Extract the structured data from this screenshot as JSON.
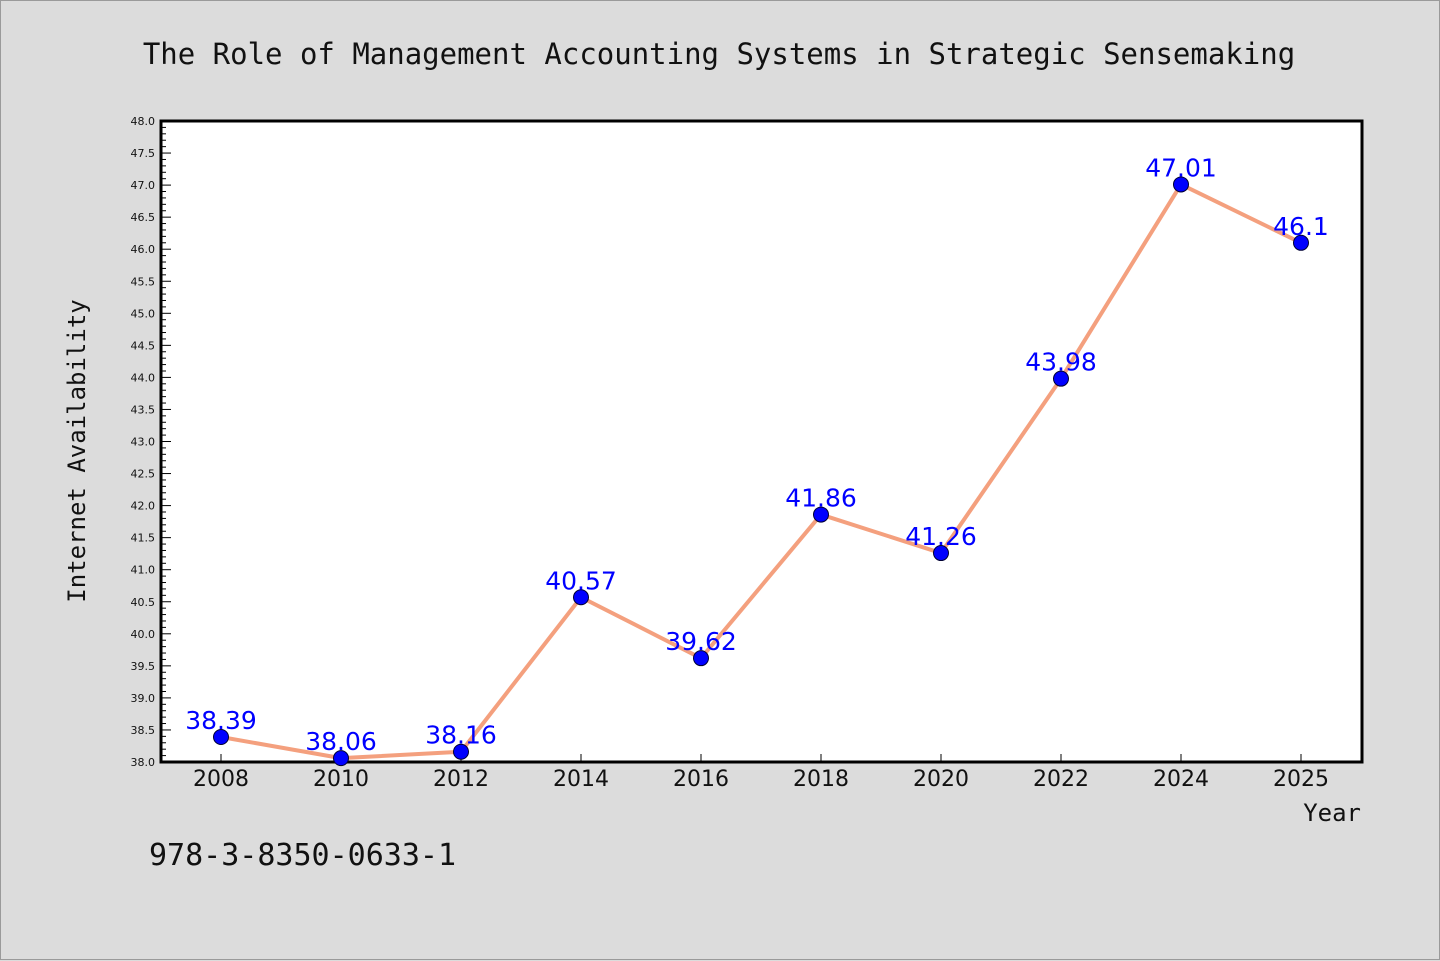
{
  "chart_data": {
    "type": "line",
    "title": "The Role of Management Accounting Systems in Strategic Sensemaking",
    "xlabel": "Year",
    "ylabel": "Internet Availability",
    "categories": [
      "2008",
      "2010",
      "2012",
      "2014",
      "2016",
      "2018",
      "2020",
      "2022",
      "2024",
      "2025"
    ],
    "series": [
      {
        "values": [
          38.39,
          38.06,
          38.16,
          40.57,
          39.62,
          41.86,
          41.26,
          43.98,
          47.01,
          46.1
        ],
        "labels": [
          "38.39",
          "38.06",
          "38.16",
          "40.57",
          "39.62",
          "41.86",
          "41.26",
          "43.98",
          "47.01",
          "46.1"
        ]
      }
    ],
    "ylim": [
      38.0,
      48.0
    ],
    "yticks": [
      "38.0",
      "38.5",
      "39.0",
      "39.5",
      "40.0",
      "40.5",
      "41.0",
      "41.5",
      "42.0",
      "42.5",
      "43.0",
      "43.5",
      "44.0",
      "44.5",
      "45.0",
      "45.5",
      "46.0",
      "46.5",
      "47.0",
      "47.5",
      "48.0"
    ],
    "grid": false,
    "legend": "none"
  },
  "footer": {
    "isbn": "978-3-8350-0633-1"
  },
  "colors": {
    "background": "#dcdcdc",
    "plot_background": "#ffffff",
    "line": "#f4a07e",
    "marker": "#0000ff",
    "label": "#0000ff"
  }
}
